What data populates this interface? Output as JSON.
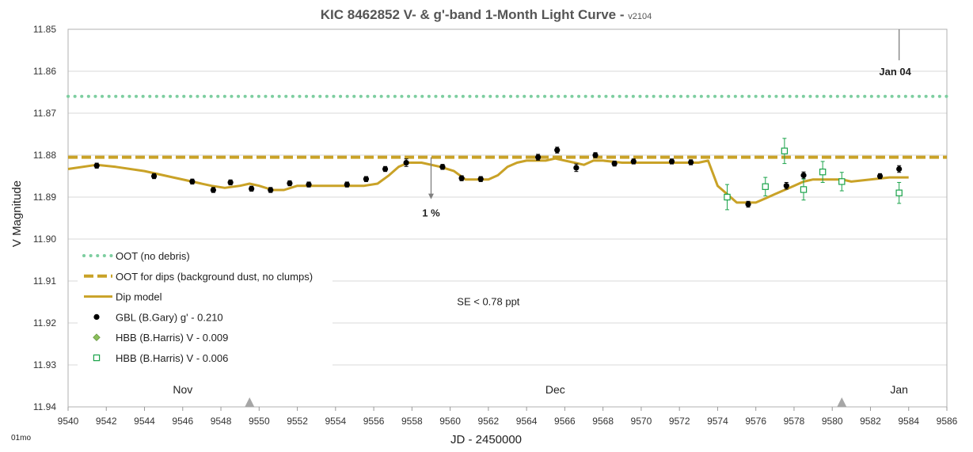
{
  "chart_data": {
    "type": "scatter",
    "title": "KIC 8462852 V- & g'-band 1-Month Light Curve - ",
    "title_version": "v2104",
    "xlabel": "JD - 2450000",
    "ylabel": "V Magnitude",
    "xlim": [
      9540,
      9586
    ],
    "ylim": [
      11.85,
      11.94
    ],
    "y_inverted": true,
    "x_ticks": [
      "9540",
      "9542",
      "9544",
      "9546",
      "9548",
      "9550",
      "9552",
      "9554",
      "9556",
      "9558",
      "9560",
      "9562",
      "9564",
      "9566",
      "9568",
      "9570",
      "9572",
      "9574",
      "9576",
      "9578",
      "9580",
      "9582",
      "9584",
      "9586"
    ],
    "y_ticks": [
      "11.85",
      "11.86",
      "11.87",
      "11.88",
      "11.89",
      "11.90",
      "11.91",
      "11.92",
      "11.93",
      "11.94"
    ],
    "grid": "horizontal",
    "legend_placement": "bottom-left",
    "series": [
      {
        "name": "OOT (no debris)",
        "kind": "hline",
        "style": "dotted",
        "color": "#7dcea0",
        "y": 11.866
      },
      {
        "name": "OOT for dips (background dust, no clumps)",
        "kind": "hline",
        "style": "dashed",
        "color": "#c9a227",
        "y": 11.8805
      },
      {
        "name": "Dip model",
        "kind": "line",
        "color": "#c9a227",
        "x": [
          9540,
          9541.5,
          9542.5,
          9544,
          9545.5,
          9546.5,
          9547.5,
          9548.2,
          9549,
          9549.5,
          9550,
          9550.7,
          9551.3,
          9552,
          9552.5,
          9553.5,
          9554.5,
          9555.5,
          9556.2,
          9556.8,
          9557.3,
          9557.8,
          9558.5,
          9559.5,
          9560.2,
          9560.8,
          9561.3,
          9562,
          9562.5,
          9563,
          9563.5,
          9564,
          9564.5,
          9565,
          9565.5,
          9566,
          9566.5,
          9567,
          9567.5,
          9568,
          9569,
          9570,
          9571,
          9572,
          9573,
          9573.5,
          9574,
          9574.5,
          9575,
          9575.5,
          9576,
          9576.5,
          9577,
          9577.5,
          9578,
          9578.5,
          9579,
          9579.5,
          9580,
          9580.5,
          9581,
          9582,
          9583,
          9584
        ],
        "y": [
          11.8833,
          11.8823,
          11.8828,
          11.8838,
          11.8853,
          11.8863,
          11.8873,
          11.8878,
          11.8873,
          11.8868,
          11.8873,
          11.8883,
          11.8883,
          11.8873,
          11.8873,
          11.8873,
          11.8873,
          11.8873,
          11.8868,
          11.8848,
          11.8828,
          11.8818,
          11.8818,
          11.8828,
          11.8838,
          11.8858,
          11.8858,
          11.8858,
          11.8848,
          11.8828,
          11.8818,
          11.8813,
          11.8813,
          11.8813,
          11.8808,
          11.8813,
          11.8818,
          11.8823,
          11.8813,
          11.8813,
          11.8818,
          11.8818,
          11.8818,
          11.8818,
          11.8818,
          11.8813,
          11.8873,
          11.8893,
          11.8913,
          11.8913,
          11.8913,
          11.8903,
          11.8893,
          11.8883,
          11.8873,
          11.8863,
          11.8858,
          11.8858,
          11.8858,
          11.8858,
          11.8863,
          11.8858,
          11.8853,
          11.8853
        ]
      },
      {
        "name": "GBL (B.Gary) g' - 0.210",
        "kind": "points",
        "marker": "filled-circle",
        "color": "#000000",
        "x": [
          9541.5,
          9544.5,
          9546.5,
          9547.6,
          9548.5,
          9549.6,
          9550.6,
          9551.6,
          9552.6,
          9554.6,
          9555.6,
          9556.6,
          9557.7,
          9559.6,
          9560.6,
          9561.6,
          9564.6,
          9565.6,
          9566.6,
          9567.6,
          9568.6,
          9569.6,
          9571.6,
          9572.6,
          9575.6,
          9577.6,
          9578.5,
          9582.5,
          9583.5
        ],
        "y": [
          11.8825,
          11.885,
          11.8863,
          11.8883,
          11.8865,
          11.888,
          11.8883,
          11.8867,
          11.887,
          11.887,
          11.8857,
          11.8833,
          11.8818,
          11.8828,
          11.8855,
          11.8857,
          11.8805,
          11.8788,
          11.883,
          11.88,
          11.882,
          11.8815,
          11.8815,
          11.8817,
          11.8917,
          11.8873,
          11.8848,
          11.885,
          11.8833
        ],
        "err": [
          0.0006,
          0.0006,
          0.0006,
          0.0006,
          0.0006,
          0.0006,
          0.0006,
          0.0006,
          0.0006,
          0.0006,
          0.0006,
          0.0006,
          0.0009,
          0.0006,
          0.0006,
          0.0006,
          0.0007,
          0.0007,
          0.0009,
          0.0006,
          0.0006,
          0.0006,
          0.0006,
          0.0006,
          0.0007,
          0.0008,
          0.0008,
          0.0006,
          0.0008
        ]
      },
      {
        "name": "HBB (B.Harris) V - 0.009",
        "kind": "points",
        "marker": "diamond",
        "color": "#8bbf5a",
        "x": [],
        "y": []
      },
      {
        "name": "HBB (B.Harris) V - 0.006",
        "kind": "points",
        "marker": "open-square",
        "color": "#1aa34a",
        "x": [
          9574.5,
          9576.5,
          9577.5,
          9578.5,
          9579.5,
          9580.5,
          9583.5
        ],
        "y": [
          11.89,
          11.8875,
          11.879,
          11.8882,
          11.884,
          11.8863,
          11.889
        ],
        "err": [
          0.003,
          0.0022,
          0.003,
          0.0025,
          0.0025,
          0.0022,
          0.0025
        ]
      }
    ],
    "annotations": {
      "one_percent": {
        "label": "1 %",
        "x": 9559,
        "y_from": 11.8805,
        "y_to": 11.8905
      },
      "se": {
        "label": "SE < 0.78 ppt",
        "x": 9562.0,
        "y": 11.915
      },
      "jan04": {
        "label": "Jan 04",
        "x": 9583.5,
        "y_from": 11.85,
        "y_to": 11.854
      },
      "months": [
        {
          "label": "Nov",
          "x": 9546.0
        },
        {
          "label": "Dec",
          "x": 9565.5
        },
        {
          "label": "Jan",
          "x": 9583.5
        }
      ],
      "triangles": [
        9549.5,
        9580.5
      ],
      "corner_label": "01mo"
    }
  }
}
